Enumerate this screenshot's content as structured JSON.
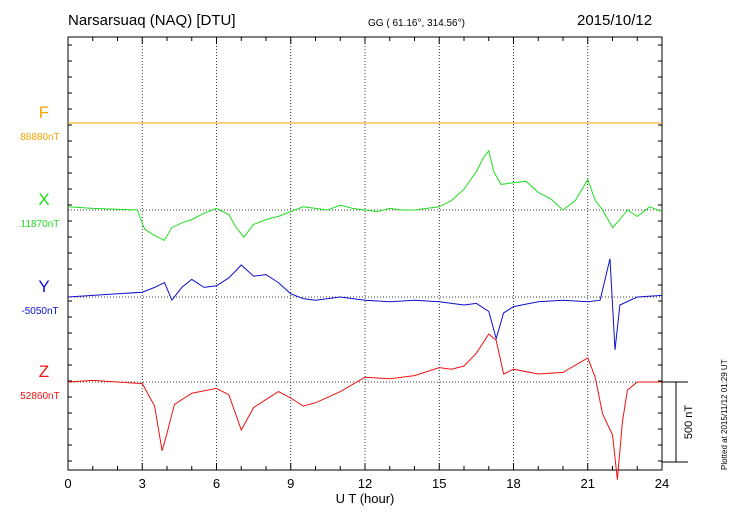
{
  "header": {
    "station": "Narsarsuaq (NAQ)  [DTU]",
    "coords": "GG ( 61.16°, 314.56°)",
    "date": "2015/10/12"
  },
  "plotted": "Plotted at 2015/11/12 01:29 UT",
  "chart_data": {
    "type": "line",
    "xlabel": "U T (hour)",
    "xlim": [
      0,
      24
    ],
    "xticks": [
      "0",
      "3",
      "6",
      "9",
      "12",
      "15",
      "18",
      "21",
      "24"
    ],
    "scale_bar_label": "500 nT",
    "series": [
      {
        "name": "F",
        "baseline_label": "88880nT",
        "color": "#f5a500",
        "x": [
          0,
          24
        ],
        "values": [
          0,
          0
        ]
      },
      {
        "name": "X",
        "baseline_label": "11870nT",
        "color": "#22dd22",
        "x": [
          0,
          1,
          2,
          2.8,
          3.1,
          3.5,
          3.9,
          4.2,
          4.6,
          5,
          5.5,
          6,
          6.5,
          6.8,
          7.1,
          7.5,
          8,
          8.5,
          9,
          9.5,
          10,
          10.5,
          11,
          11.5,
          12,
          12.5,
          13,
          13.5,
          14,
          14.5,
          15,
          15.5,
          16,
          16.5,
          16.8,
          17,
          17.2,
          17.5,
          18,
          18.5,
          19,
          19.5,
          20,
          20.5,
          21,
          21.3,
          21.6,
          22,
          22.3,
          22.6,
          23,
          23.5,
          24
        ],
        "values": [
          20,
          10,
          5,
          0,
          -120,
          -160,
          -190,
          -110,
          -80,
          -60,
          -20,
          10,
          -30,
          -110,
          -170,
          -90,
          -60,
          -40,
          -10,
          20,
          10,
          0,
          30,
          10,
          0,
          -10,
          10,
          0,
          0,
          10,
          20,
          60,
          130,
          240,
          330,
          370,
          240,
          160,
          170,
          180,
          110,
          70,
          0,
          60,
          190,
          60,
          0,
          -110,
          -60,
          0,
          -40,
          20,
          -10
        ]
      },
      {
        "name": "Y",
        "baseline_label": "-5050nT",
        "color": "#1010cc",
        "x": [
          0,
          1,
          2,
          3,
          3.5,
          3.9,
          4.2,
          4.6,
          5,
          5.5,
          6,
          6.5,
          7,
          7.5,
          8,
          8.5,
          9,
          9.5,
          10,
          11,
          12,
          13,
          14,
          15,
          16,
          16.5,
          17,
          17.3,
          17.6,
          18,
          19,
          20,
          21,
          21.5,
          21.9,
          22.1,
          22.3,
          23,
          24
        ],
        "values": [
          0,
          10,
          20,
          30,
          60,
          90,
          -20,
          60,
          110,
          60,
          70,
          120,
          200,
          130,
          140,
          90,
          20,
          -10,
          -20,
          0,
          -20,
          -30,
          -20,
          -30,
          -50,
          -40,
          -90,
          -260,
          -100,
          -60,
          -30,
          -20,
          -30,
          -20,
          240,
          -330,
          -50,
          0,
          10
        ]
      },
      {
        "name": "Z",
        "baseline_label": "52860nT",
        "color": "#ee1111",
        "x": [
          0,
          1,
          2,
          3,
          3.5,
          3.8,
          4,
          4.3,
          5,
          6,
          6.5,
          7,
          7.5,
          8,
          8.5,
          9,
          9.5,
          10,
          11,
          12,
          13,
          14,
          15,
          15.5,
          16,
          16.5,
          17,
          17.3,
          17.6,
          18,
          19,
          20,
          21,
          21.3,
          21.6,
          22,
          22.2,
          22.4,
          22.6,
          23,
          24
        ],
        "values": [
          0,
          10,
          0,
          -10,
          -150,
          -430,
          -320,
          -140,
          -70,
          -40,
          -80,
          -300,
          -160,
          -110,
          -60,
          -100,
          -150,
          -130,
          -60,
          30,
          20,
          40,
          90,
          80,
          100,
          180,
          300,
          260,
          50,
          80,
          50,
          60,
          150,
          30,
          -200,
          -330,
          -610,
          -250,
          -50,
          0,
          0
        ]
      }
    ]
  }
}
